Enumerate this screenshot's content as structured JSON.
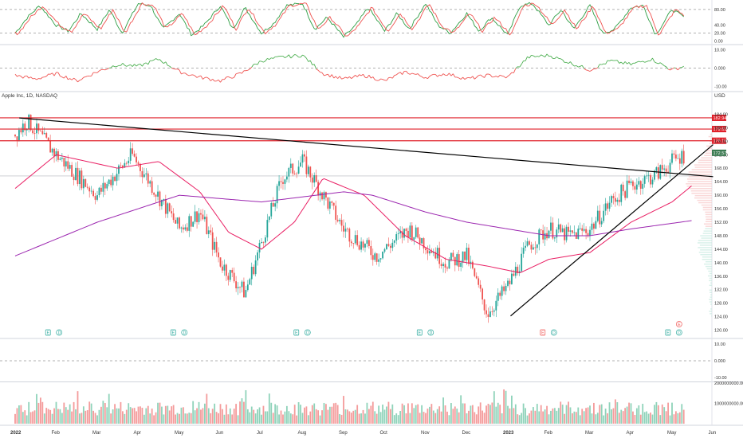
{
  "title": "Apple Inc, 1D, NASDAQ",
  "currency": "USD",
  "colors": {
    "up": "#26a69a",
    "down": "#ef5350",
    "resistance": "#e0202a",
    "trendline": "#000000",
    "ma_short": "#e91e63",
    "ma_long": "#9c27b0",
    "stoch_k": "#2e9e44",
    "stoch_d": "#ef5350",
    "last_price_bg": "#3c7a52",
    "grid": "#f0f3fa",
    "axis_text": "#333333"
  },
  "x_axis": {
    "labels": [
      "2022",
      "Feb",
      "Mar",
      "Apr",
      "May",
      "Jun",
      "Jul",
      "Aug",
      "Sep",
      "Oct",
      "Nov",
      "Dec",
      "2023",
      "Feb",
      "Mar",
      "Apr",
      "May",
      "Jun"
    ],
    "bold": [
      "2022",
      "2023"
    ]
  },
  "chart_data": [
    {
      "type": "candlestick",
      "name": "price",
      "ylim": [
        118,
        186
      ],
      "y_ticks": [
        "184.00",
        "180.00",
        "176.00",
        "172.00",
        "168.00",
        "164.00",
        "160.00",
        "156.00",
        "152.00",
        "148.00",
        "144.00",
        "140.00",
        "136.00",
        "132.00",
        "128.00",
        "124.00",
        "120.00"
      ],
      "anchors_month_index": [
        0,
        0.3,
        1,
        2,
        2.85,
        4,
        4.5,
        5,
        5.6,
        6.1,
        6.5,
        7,
        7.5,
        8,
        8.8,
        9.6,
        10.5,
        11,
        11.5,
        12,
        12.5,
        13,
        13.5,
        14,
        14.5,
        15,
        15.6,
        16,
        16.3
      ],
      "anchors_close": [
        178,
        182,
        172,
        160,
        172,
        150,
        155,
        140,
        131,
        150,
        165,
        170,
        160,
        150,
        142,
        150,
        140,
        142,
        125,
        133,
        145,
        150,
        148,
        150,
        158,
        163,
        166,
        170,
        172
      ],
      "resistance_levels": [
        182.94,
        179.61,
        176.15
      ],
      "resistance_labels": [
        "182.94",
        "179.61",
        "176.15"
      ],
      "last_price": 172.57,
      "last_price_label": "172.57",
      "trendline_down": {
        "from": [
          "2022-01-04",
          182.9
        ],
        "to": [
          "2023-06-01",
          165.5
        ]
      },
      "trendline_up": {
        "from": [
          "2023-01-03",
          124.2
        ],
        "to": [
          "2023-06-01",
          175.0
        ]
      },
      "moving_averages": [
        {
          "name": "MA short",
          "x": [
            0,
            1,
            2.5,
            3.5,
            4.5,
            5.2,
            6,
            6.8,
            7.5,
            8.5,
            9.5,
            10.5,
            11.5,
            12.3,
            13,
            14,
            15,
            16,
            16.5
          ],
          "y": [
            162,
            172,
            168,
            170,
            161,
            149,
            144,
            152,
            165,
            160,
            148,
            141,
            139,
            137,
            141,
            143,
            152,
            158,
            163
          ]
        },
        {
          "name": "MA long",
          "x": [
            0,
            2,
            4,
            6,
            8,
            8.7,
            10,
            11,
            12,
            13,
            14,
            15,
            16.5
          ],
          "y": [
            142,
            152,
            160,
            158,
            161,
            160,
            155,
            152,
            150,
            148,
            148,
            150,
            152.5
          ]
        }
      ],
      "event_markers": [
        {
          "month_index": 0.8,
          "labels": [
            "E",
            "D"
          ]
        },
        {
          "month_index": 3.85,
          "labels": [
            "E",
            "D"
          ]
        },
        {
          "month_index": 6.85,
          "labels": [
            "E",
            "D"
          ]
        },
        {
          "month_index": 9.85,
          "labels": [
            "E",
            "D"
          ]
        },
        {
          "month_index": 12.85,
          "labels": [
            "E",
            "D"
          ],
          "first_down": true
        },
        {
          "month_index": 15.9,
          "labels": [
            "E",
            "D"
          ],
          "extra": "E"
        }
      ]
    },
    {
      "type": "line",
      "name": "stochastic",
      "ylim": [
        -5,
        100
      ],
      "y_ticks": [
        "80.00",
        "40.00",
        "20.00",
        "0.00"
      ],
      "y_tick_values": [
        80,
        40,
        20,
        0
      ],
      "levels": [
        80,
        20
      ],
      "x": [
        0,
        0.3,
        0.6,
        1,
        1.3,
        1.6,
        2,
        2.3,
        2.6,
        3,
        3.3,
        3.6,
        4,
        4.3,
        4.6,
        5,
        5.3,
        5.6,
        6,
        6.3,
        6.6,
        7,
        7.3,
        7.6,
        8,
        8.3,
        8.6,
        9,
        9.3,
        9.6,
        10,
        10.3,
        10.6,
        11,
        11.3,
        11.6,
        12,
        12.3,
        12.6,
        13,
        13.3,
        13.6,
        14,
        14.3,
        14.6,
        15,
        15.3,
        15.6,
        16,
        16.3
      ],
      "values": [
        20,
        60,
        90,
        40,
        25,
        70,
        30,
        80,
        20,
        95,
        90,
        30,
        70,
        15,
        40,
        90,
        30,
        85,
        20,
        45,
        90,
        95,
        30,
        60,
        10,
        40,
        85,
        25,
        70,
        30,
        95,
        40,
        20,
        70,
        25,
        60,
        15,
        90,
        95,
        40,
        80,
        30,
        90,
        20,
        30,
        85,
        90,
        15,
        80,
        60
      ]
    },
    {
      "type": "line",
      "name": "momentum",
      "ylim": [
        -12,
        12
      ],
      "y_ticks": [
        "10.00",
        "0.000",
        "-10.00"
      ],
      "y_tick_values": [
        10,
        0,
        -10
      ],
      "x": [
        0,
        0.5,
        1,
        1.5,
        2,
        2.5,
        3,
        3.5,
        4,
        4.5,
        5,
        5.5,
        6,
        6.5,
        7,
        7.5,
        8,
        8.5,
        9,
        9.5,
        10,
        10.5,
        11,
        11.5,
        12,
        12.5,
        13,
        13.5,
        14,
        14.5,
        15,
        15.5,
        16,
        16.3
      ],
      "values": [
        -4,
        -6,
        -3,
        -7,
        -2,
        2,
        1,
        5,
        -2,
        -5,
        -7,
        -3,
        4,
        6,
        7,
        -3,
        -6,
        -4,
        -7,
        -2,
        -5,
        -3,
        -6,
        -4,
        -5,
        6,
        7,
        3,
        -1,
        4,
        2,
        5,
        -1,
        1
      ]
    },
    {
      "type": "line",
      "name": "oscillator",
      "ylim": [
        -12,
        12
      ],
      "y_ticks": [
        "10.00",
        "0.000",
        "-10.00"
      ],
      "y_tick_values": [
        10,
        0,
        -10
      ],
      "x": [],
      "values": []
    },
    {
      "type": "bar",
      "name": "volume",
      "ylim": [
        0,
        2000000000
      ],
      "y_ticks": [
        "2000000000.00",
        "1000000000.00"
      ],
      "y_tick_values": [
        2000000000,
        1000000000
      ]
    }
  ]
}
